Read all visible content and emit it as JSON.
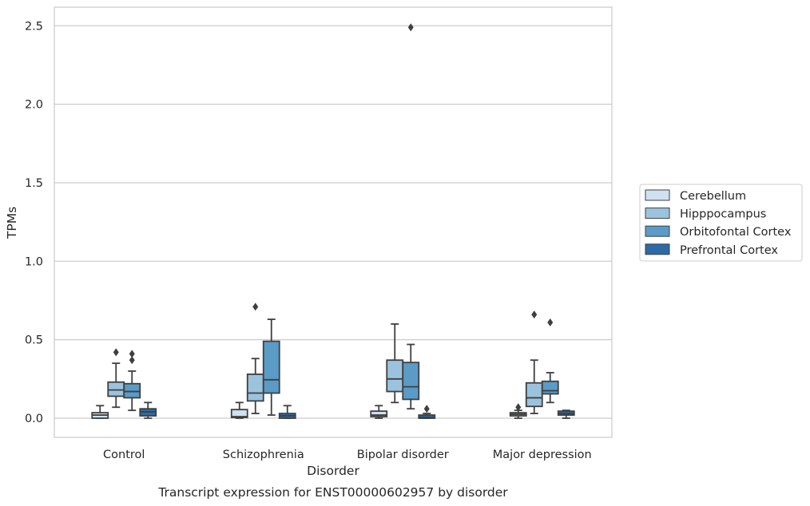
{
  "chart_data": {
    "type": "box",
    "caption": "Transcript expression for ENST00000602957 by disorder",
    "xlabel": "Disorder",
    "ylabel": "TPMs",
    "ylim": [
      -0.12,
      2.62
    ],
    "yticks": [
      0.0,
      0.5,
      1.0,
      1.5,
      2.0,
      2.5
    ],
    "ytick_labels": [
      "0.0",
      "0.5",
      "1.0",
      "1.5",
      "2.0",
      "2.5"
    ],
    "grid": "horizontal",
    "legend_position": "right",
    "categories": [
      "Control",
      "Schizophrenia",
      "Bipolar disorder",
      "Major depression"
    ],
    "series": [
      {
        "name": "Cerebellum",
        "color": "#d0e1f0",
        "boxes": [
          {
            "whisker_low": 0.0,
            "q1": 0.0,
            "median": 0.02,
            "q3": 0.035,
            "whisker_high": 0.08,
            "outliers": []
          },
          {
            "whisker_low": 0.0,
            "q1": 0.005,
            "median": 0.01,
            "q3": 0.055,
            "whisker_high": 0.1,
            "outliers": []
          },
          {
            "whisker_low": 0.0,
            "q1": 0.01,
            "median": 0.02,
            "q3": 0.045,
            "whisker_high": 0.08,
            "outliers": []
          },
          {
            "whisker_low": 0.0,
            "q1": 0.015,
            "median": 0.025,
            "q3": 0.035,
            "whisker_high": 0.05,
            "outliers": [
              0.07
            ]
          }
        ]
      },
      {
        "name": "Hipppocampus",
        "color": "#9cc3dd",
        "boxes": [
          {
            "whisker_low": 0.07,
            "q1": 0.14,
            "median": 0.18,
            "q3": 0.23,
            "whisker_high": 0.35,
            "outliers": [
              0.42
            ]
          },
          {
            "whisker_low": 0.03,
            "q1": 0.11,
            "median": 0.16,
            "q3": 0.28,
            "whisker_high": 0.38,
            "outliers": [
              0.71
            ]
          },
          {
            "whisker_low": 0.1,
            "q1": 0.17,
            "median": 0.25,
            "q3": 0.37,
            "whisker_high": 0.6,
            "outliers": []
          },
          {
            "whisker_low": 0.03,
            "q1": 0.075,
            "median": 0.13,
            "q3": 0.225,
            "whisker_high": 0.37,
            "outliers": [
              0.66
            ]
          }
        ]
      },
      {
        "name": "Orbitofontal Cortex",
        "color": "#5a9bc8",
        "boxes": [
          {
            "whisker_low": 0.05,
            "q1": 0.13,
            "median": 0.17,
            "q3": 0.22,
            "whisker_high": 0.3,
            "outliers": [
              0.37,
              0.41
            ]
          },
          {
            "whisker_low": 0.02,
            "q1": 0.16,
            "median": 0.245,
            "q3": 0.49,
            "whisker_high": 0.63,
            "outliers": []
          },
          {
            "whisker_low": 0.06,
            "q1": 0.12,
            "median": 0.2,
            "q3": 0.355,
            "whisker_high": 0.47,
            "outliers": [
              2.49
            ]
          },
          {
            "whisker_low": 0.1,
            "q1": 0.155,
            "median": 0.175,
            "q3": 0.235,
            "whisker_high": 0.29,
            "outliers": [
              0.61
            ]
          }
        ]
      },
      {
        "name": "Prefrontal Cortex",
        "color": "#2c6ba6",
        "boxes": [
          {
            "whisker_low": 0.0,
            "q1": 0.015,
            "median": 0.04,
            "q3": 0.06,
            "whisker_high": 0.1,
            "outliers": []
          },
          {
            "whisker_low": 0.0,
            "q1": 0.0,
            "median": 0.015,
            "q3": 0.03,
            "whisker_high": 0.08,
            "outliers": []
          },
          {
            "whisker_low": 0.0,
            "q1": 0.0,
            "median": 0.005,
            "q3": 0.02,
            "whisker_high": 0.03,
            "outliers": [
              0.06
            ]
          },
          {
            "whisker_low": 0.0,
            "q1": 0.02,
            "median": 0.03,
            "q3": 0.045,
            "whisker_high": 0.05,
            "outliers": []
          }
        ]
      }
    ]
  }
}
